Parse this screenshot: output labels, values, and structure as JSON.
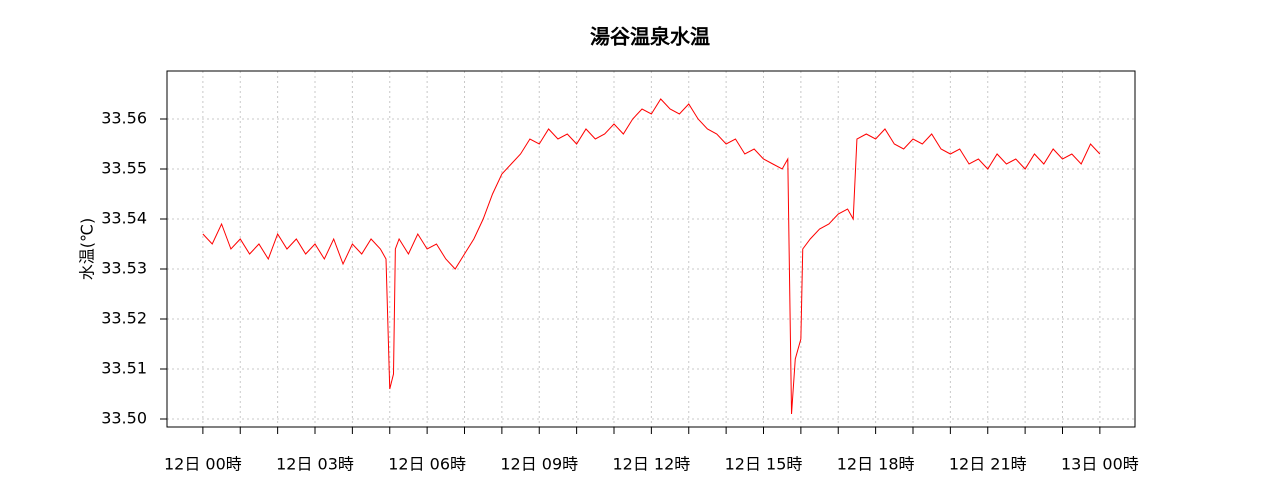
{
  "chart_data": {
    "type": "line",
    "title": "湯谷温泉水温",
    "ylabel": "水温(℃)",
    "x": [
      0,
      0.25,
      0.5,
      0.75,
      1,
      1.25,
      1.5,
      1.75,
      2,
      2.25,
      2.5,
      2.75,
      3,
      3.25,
      3.5,
      3.75,
      4,
      4.25,
      4.5,
      4.75,
      4.9,
      5,
      5.1,
      5.15,
      5.25,
      5.5,
      5.75,
      6,
      6.25,
      6.5,
      6.75,
      7,
      7.25,
      7.5,
      7.75,
      8,
      8.25,
      8.5,
      8.75,
      9,
      9.25,
      9.5,
      9.75,
      10,
      10.25,
      10.5,
      10.75,
      11,
      11.25,
      11.5,
      11.75,
      12,
      12.25,
      12.5,
      12.75,
      13,
      13.25,
      13.5,
      13.75,
      14,
      14.25,
      14.5,
      14.75,
      15,
      15.25,
      15.5,
      15.65,
      15.75,
      15.85,
      16,
      16.05,
      16.25,
      16.5,
      16.75,
      17,
      17.25,
      17.4,
      17.5,
      17.75,
      18,
      18.25,
      18.5,
      18.75,
      19,
      19.25,
      19.5,
      19.75,
      20,
      20.25,
      20.5,
      20.75,
      21,
      21.25,
      21.5,
      21.75,
      22,
      22.25,
      22.5,
      22.75,
      23,
      23.25,
      23.5,
      23.75,
      24
    ],
    "series": [
      {
        "name": "水温",
        "color": "#ff0000",
        "values": [
          33.537,
          33.535,
          33.539,
          33.534,
          33.536,
          33.533,
          33.535,
          33.532,
          33.537,
          33.534,
          33.536,
          33.533,
          33.535,
          33.532,
          33.536,
          33.531,
          33.535,
          33.533,
          33.536,
          33.534,
          33.532,
          33.506,
          33.509,
          33.534,
          33.536,
          33.533,
          33.537,
          33.534,
          33.535,
          33.532,
          33.53,
          33.533,
          33.536,
          33.54,
          33.545,
          33.549,
          33.551,
          33.553,
          33.556,
          33.555,
          33.558,
          33.556,
          33.557,
          33.555,
          33.558,
          33.556,
          33.557,
          33.559,
          33.557,
          33.56,
          33.562,
          33.561,
          33.564,
          33.562,
          33.561,
          33.563,
          33.56,
          33.558,
          33.557,
          33.555,
          33.556,
          33.553,
          33.554,
          33.552,
          33.551,
          33.55,
          33.552,
          33.501,
          33.512,
          33.516,
          33.534,
          33.536,
          33.538,
          33.539,
          33.541,
          33.542,
          33.54,
          33.556,
          33.557,
          33.556,
          33.558,
          33.555,
          33.554,
          33.556,
          33.555,
          33.557,
          33.554,
          33.553,
          33.554,
          33.551,
          33.552,
          33.55,
          33.553,
          33.551,
          33.552,
          33.55,
          33.553,
          33.551,
          33.554,
          33.552,
          33.553,
          33.551,
          33.555,
          33.553
        ]
      }
    ],
    "xlim": [
      -0.96,
      24.94
    ],
    "xticks": [
      {
        "value": 0,
        "label": "12日 00時"
      },
      {
        "value": 3,
        "label": "12日 03時"
      },
      {
        "value": 6,
        "label": "12日 06時"
      },
      {
        "value": 9,
        "label": "12日 09時"
      },
      {
        "value": 12,
        "label": "12日 12時"
      },
      {
        "value": 15,
        "label": "12日 15時"
      },
      {
        "value": 18,
        "label": "12日 18時"
      },
      {
        "value": 21,
        "label": "12日 21時"
      },
      {
        "value": 24,
        "label": "13日 00時"
      }
    ],
    "xminor_ticks": [
      1,
      2,
      4,
      5,
      7,
      8,
      10,
      11,
      13,
      14,
      16,
      17,
      19,
      20,
      22,
      23
    ],
    "ylim": [
      33.4984,
      33.5696
    ],
    "yticks": [
      {
        "value": 33.5,
        "label": "33.50"
      },
      {
        "value": 33.51,
        "label": "33.51"
      },
      {
        "value": 33.52,
        "label": "33.52"
      },
      {
        "value": 33.53,
        "label": "33.53"
      },
      {
        "value": 33.54,
        "label": "33.54"
      },
      {
        "value": 33.55,
        "label": "33.55"
      },
      {
        "value": 33.56,
        "label": "33.56"
      }
    ],
    "grid": true
  }
}
